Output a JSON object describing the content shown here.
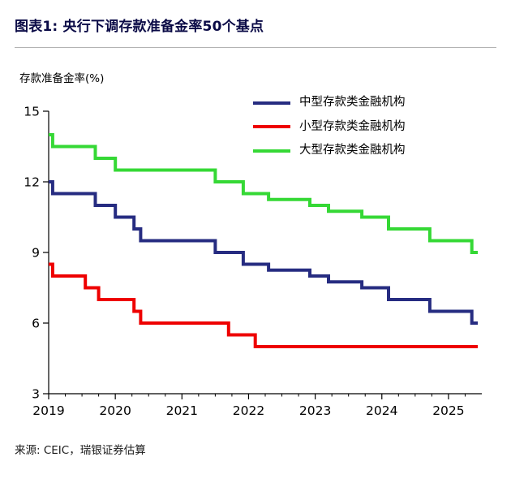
{
  "header": {
    "title": "图表1: 央行下调存款准备金率50个基点",
    "title_color": "#0a0a46"
  },
  "legend": [
    {
      "label": "中型存款类金融机构",
      "color": "#262C81"
    },
    {
      "label": "小型存款类金融机构",
      "color": "#EE0000"
    },
    {
      "label": "大型存款类金融机构",
      "color": "#35D835"
    }
  ],
  "footer": {
    "source": "来源: CEIC，瑞银证券估算"
  },
  "chart_data": {
    "type": "line",
    "title": "央行下调存款准备金率50个基点",
    "ylabel": "存款准备金率(%)",
    "xlabel": "",
    "ylim": [
      3,
      15
    ],
    "yticks": [
      3,
      6,
      9,
      12,
      15
    ],
    "xlim": [
      2019,
      2025.5
    ],
    "xticks": [
      2019,
      2020,
      2021,
      2022,
      2023,
      2024,
      2025
    ],
    "grid": false,
    "legend_position": "top-right",
    "series": [
      {
        "name": "中型存款类金融机构",
        "color": "#262C81",
        "points": [
          [
            2019.0,
            12.0
          ],
          [
            2019.06,
            12.0
          ],
          [
            2019.06,
            11.5
          ],
          [
            2019.7,
            11.5
          ],
          [
            2019.7,
            11.0
          ],
          [
            2020.0,
            11.0
          ],
          [
            2020.0,
            10.5
          ],
          [
            2020.28,
            10.5
          ],
          [
            2020.28,
            10.0
          ],
          [
            2020.38,
            10.0
          ],
          [
            2020.38,
            9.5
          ],
          [
            2021.5,
            9.5
          ],
          [
            2021.5,
            9.0
          ],
          [
            2021.92,
            9.0
          ],
          [
            2021.92,
            8.5
          ],
          [
            2022.3,
            8.5
          ],
          [
            2022.3,
            8.25
          ],
          [
            2022.92,
            8.25
          ],
          [
            2022.92,
            8.0
          ],
          [
            2023.2,
            8.0
          ],
          [
            2023.2,
            7.75
          ],
          [
            2023.7,
            7.75
          ],
          [
            2023.7,
            7.5
          ],
          [
            2024.1,
            7.5
          ],
          [
            2024.1,
            7.0
          ],
          [
            2024.72,
            7.0
          ],
          [
            2024.72,
            6.5
          ],
          [
            2025.35,
            6.5
          ],
          [
            2025.35,
            6.0
          ],
          [
            2025.44,
            6.0
          ]
        ]
      },
      {
        "name": "小型存款类金融机构",
        "color": "#EE0000",
        "points": [
          [
            2019.0,
            8.5
          ],
          [
            2019.06,
            8.5
          ],
          [
            2019.06,
            8.0
          ],
          [
            2019.55,
            8.0
          ],
          [
            2019.55,
            7.5
          ],
          [
            2019.75,
            7.5
          ],
          [
            2019.75,
            7.0
          ],
          [
            2020.28,
            7.0
          ],
          [
            2020.28,
            6.5
          ],
          [
            2020.38,
            6.5
          ],
          [
            2020.38,
            6.0
          ],
          [
            2021.7,
            6.0
          ],
          [
            2021.7,
            5.5
          ],
          [
            2022.1,
            5.5
          ],
          [
            2022.1,
            5.0
          ],
          [
            2025.44,
            5.0
          ]
        ]
      },
      {
        "name": "大型存款类金融机构",
        "color": "#35D835",
        "points": [
          [
            2019.0,
            14.0
          ],
          [
            2019.06,
            14.0
          ],
          [
            2019.06,
            13.5
          ],
          [
            2019.7,
            13.5
          ],
          [
            2019.7,
            13.0
          ],
          [
            2020.0,
            13.0
          ],
          [
            2020.0,
            12.5
          ],
          [
            2021.5,
            12.5
          ],
          [
            2021.5,
            12.0
          ],
          [
            2021.92,
            12.0
          ],
          [
            2021.92,
            11.5
          ],
          [
            2022.3,
            11.5
          ],
          [
            2022.3,
            11.25
          ],
          [
            2022.92,
            11.25
          ],
          [
            2022.92,
            11.0
          ],
          [
            2023.2,
            11.0
          ],
          [
            2023.2,
            10.75
          ],
          [
            2023.7,
            10.75
          ],
          [
            2023.7,
            10.5
          ],
          [
            2024.1,
            10.5
          ],
          [
            2024.1,
            10.0
          ],
          [
            2024.72,
            10.0
          ],
          [
            2024.72,
            9.5
          ],
          [
            2025.35,
            9.5
          ],
          [
            2025.35,
            9.0
          ],
          [
            2025.44,
            9.0
          ]
        ]
      }
    ]
  }
}
